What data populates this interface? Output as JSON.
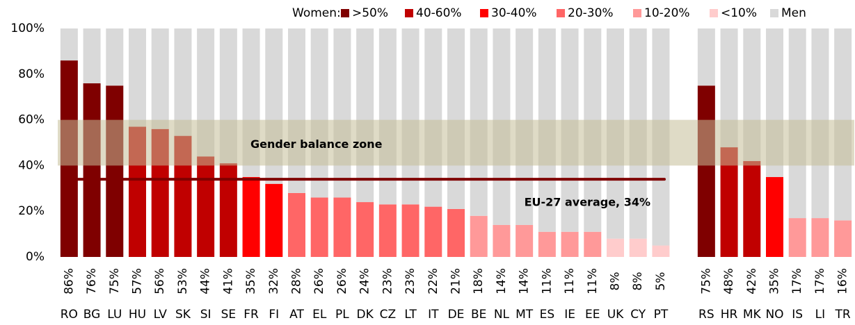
{
  "chart_data": {
    "type": "bar",
    "stacked": true,
    "categories": [
      "RO",
      "BG",
      "LU",
      "HU",
      "LV",
      "SK",
      "SI",
      "SE",
      "FR",
      "FI",
      "AT",
      "EL",
      "PL",
      "DK",
      "CZ",
      "LT",
      "IT",
      "DE",
      "BE",
      "NL",
      "MT",
      "ES",
      "IE",
      "EE",
      "UK",
      "CY",
      "PT",
      null,
      "RS",
      "HR",
      "MK",
      "NO",
      "IS",
      "LI",
      "TR"
    ],
    "series": [
      {
        "name": "Women:",
        "values": [
          86,
          76,
          75,
          57,
          56,
          53,
          44,
          41,
          35,
          32,
          28,
          26,
          26,
          24,
          23,
          23,
          22,
          21,
          18,
          14,
          14,
          11,
          11,
          11,
          8,
          8,
          5,
          null,
          75,
          48,
          42,
          35,
          17,
          17,
          16
        ],
        "value_labels": [
          "86%",
          "76%",
          "75%",
          "57%",
          "56%",
          "53%",
          "44%",
          "41%",
          "35%",
          "32%",
          "28%",
          "26%",
          "26%",
          "24%",
          "23%",
          "23%",
          "22%",
          "21%",
          "18%",
          "14%",
          "14%",
          "11%",
          "11%",
          "11%",
          "8%",
          "8%",
          "5%",
          null,
          "75%",
          "48%",
          "42%",
          "35%",
          "17%",
          "17%",
          "16%"
        ],
        "colors": [
          "#7f0000",
          "#7f0000",
          "#7f0000",
          "#c00000",
          "#c00000",
          "#c00000",
          "#c00000",
          "#c00000",
          "#ff0000",
          "#ff0000",
          "#ff6666",
          "#ff6666",
          "#ff6666",
          "#ff6666",
          "#ff6666",
          "#ff6666",
          "#ff6666",
          "#ff6666",
          "#ff9999",
          "#ff9999",
          "#ff9999",
          "#ff9999",
          "#ff9999",
          "#ff9999",
          "#ffcccc",
          "#ffcccc",
          "#ffcccc",
          null,
          "#7f0000",
          "#c00000",
          "#c00000",
          "#ff0000",
          "#ff9999",
          "#ff9999",
          "#ff9999"
        ]
      },
      {
        "name": "Men",
        "color": "#d9d9d9",
        "values": [
          14,
          24,
          25,
          43,
          44,
          47,
          56,
          59,
          65,
          68,
          72,
          74,
          74,
          76,
          77,
          77,
          78,
          79,
          82,
          86,
          86,
          89,
          89,
          89,
          92,
          92,
          95,
          null,
          25,
          52,
          58,
          65,
          83,
          83,
          84
        ]
      }
    ],
    "legend_items": [
      {
        "name": ">50%",
        "color": "#7f0000"
      },
      {
        "name": "40-60%",
        "color": "#c00000"
      },
      {
        "name": "30-40%",
        "color": "#ff0000"
      },
      {
        "name": "20-30%",
        "color": "#ff6666"
      },
      {
        "name": "10-20%",
        "color": "#ff9999"
      },
      {
        "name": "<10%",
        "color": "#ffcccc"
      }
    ],
    "zone": {
      "label": "Gender balance zone",
      "range": [
        40,
        60
      ],
      "color": "#c4bd97"
    },
    "average": {
      "label": "EU-27 average, 34%",
      "value": 34,
      "color": "#7f0000"
    },
    "ylim": [
      0,
      100
    ],
    "yticks": [
      {
        "value": 0,
        "label": "0%"
      },
      {
        "value": 20,
        "label": "20%"
      },
      {
        "value": 40,
        "label": "40%"
      },
      {
        "value": 60,
        "label": "60%"
      },
      {
        "value": 80,
        "label": "80%"
      },
      {
        "value": 100,
        "label": "100%"
      }
    ]
  }
}
